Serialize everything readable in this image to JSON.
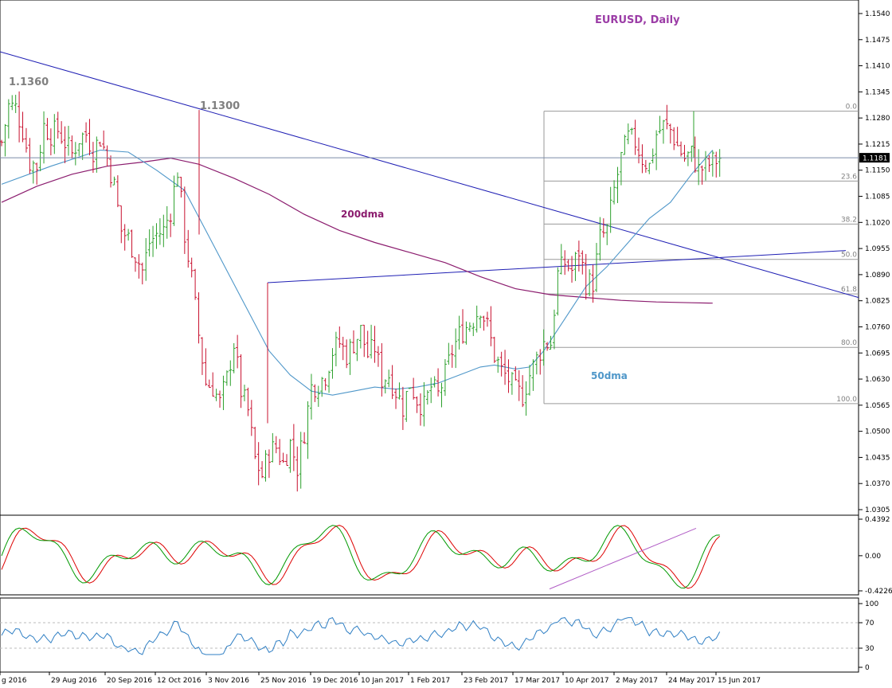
{
  "colors": {
    "up": "#2ca02c",
    "down": "#c8102e",
    "ma50": "#4f97c9",
    "ma200": "#8b1c6e",
    "trend": "#1f1fb4",
    "fib": "#9a9a9a",
    "macd_main": "#009900",
    "macd_signal": "#dd0000",
    "macd_trend": "#b05bc5",
    "rsi": "#2f7fc4",
    "title": "#9b3ca6",
    "annot": "#808080"
  },
  "chart_data": [
    {
      "type": "candlestick",
      "title": "EURUSD, Daily",
      "price_scale": {
        "min": 1.03,
        "max": 1.157
      },
      "ticks": [
        "1.1540",
        "1.1475",
        "1.1410",
        "1.1345",
        "1.1280",
        "1.1215",
        "1.1150",
        "1.1085",
        "1.1020",
        "1.0955",
        "1.0890",
        "1.0825",
        "1.0760",
        "1.0695",
        "1.0630",
        "1.0565",
        "1.0500",
        "1.0435",
        "1.0370",
        "1.0305"
      ],
      "current_price": "1.1181",
      "x_labels": [
        "g 2016",
        "29 Aug 2016",
        "20 Sep 2016",
        "12 Oct 2016",
        "3 Nov 2016",
        "25 Nov 2016",
        "19 Dec 2016",
        "10 Jan 2017",
        "1 Feb 2017",
        "23 Feb 2017",
        "17 Mar 2017",
        "10 Apr 2017",
        "2 May 2017",
        "24 May 2017",
        "15 Jun 2017"
      ],
      "annotations": [
        "1.1360",
        "1.1300",
        "200dma",
        "50dma"
      ],
      "fib_levels": [
        {
          "label": "0.0",
          "price": 1.1297
        },
        {
          "label": "23.6",
          "price": 1.1123
        },
        {
          "label": "38.2",
          "price": 1.1016
        },
        {
          "label": "50.0",
          "price": 1.0928
        },
        {
          "label": "61.8",
          "price": 1.0842
        },
        {
          "label": "80.0",
          "price": 1.0709
        },
        {
          "label": "100.0",
          "price": 1.0569
        }
      ],
      "close_path": [
        [
          0,
          1.122
        ],
        [
          2,
          1.131
        ],
        [
          4,
          1.1305
        ],
        [
          6,
          1.125
        ],
        [
          8,
          1.117
        ],
        [
          10,
          1.116
        ],
        [
          12,
          1.126
        ],
        [
          14,
          1.124
        ],
        [
          16,
          1.125
        ],
        [
          18,
          1.122
        ],
        [
          20,
          1.119
        ],
        [
          22,
          1.123
        ],
        [
          24,
          1.124
        ],
        [
          26,
          1.12
        ],
        [
          28,
          1.123
        ],
        [
          30,
          1.118
        ],
        [
          32,
          1.111
        ],
        [
          34,
          1.1
        ],
        [
          36,
          1.098
        ],
        [
          38,
          1.094
        ],
        [
          40,
          1.09
        ],
        [
          42,
          1.097
        ],
        [
          44,
          1.099
        ],
        [
          46,
          1.1
        ],
        [
          48,
          1.105
        ],
        [
          50,
          1.115
        ],
        [
          52,
          1.099
        ],
        [
          54,
          1.088
        ],
        [
          56,
          1.074
        ],
        [
          58,
          1.062
        ],
        [
          60,
          1.061
        ],
        [
          62,
          1.057
        ],
        [
          64,
          1.063
        ],
        [
          66,
          1.072
        ],
        [
          68,
          1.06
        ],
        [
          70,
          1.055
        ],
        [
          72,
          1.043
        ],
        [
          74,
          1.039
        ],
        [
          76,
          1.045
        ],
        [
          78,
          1.046
        ],
        [
          80,
          1.042
        ],
        [
          82,
          1.047
        ],
        [
          84,
          1.041
        ],
        [
          86,
          1.05
        ],
        [
          88,
          1.061
        ],
        [
          90,
          1.062
        ],
        [
          92,
          1.064
        ],
        [
          94,
          1.07
        ],
        [
          96,
          1.072
        ],
        [
          98,
          1.069
        ],
        [
          100,
          1.072
        ],
        [
          102,
          1.075
        ],
        [
          104,
          1.069
        ],
        [
          106,
          1.071
        ],
        [
          108,
          1.063
        ],
        [
          110,
          1.064
        ],
        [
          112,
          1.06
        ],
        [
          114,
          1.056
        ],
        [
          116,
          1.062
        ],
        [
          118,
          1.058
        ],
        [
          120,
          1.056
        ],
        [
          122,
          1.061
        ],
        [
          124,
          1.059
        ],
        [
          126,
          1.064
        ],
        [
          128,
          1.07
        ],
        [
          130,
          1.074
        ],
        [
          132,
          1.076
        ],
        [
          134,
          1.078
        ],
        [
          136,
          1.081
        ],
        [
          138,
          1.076
        ],
        [
          140,
          1.069
        ],
        [
          142,
          1.065
        ],
        [
          144,
          1.063
        ],
        [
          146,
          1.06
        ],
        [
          148,
          1.059
        ],
        [
          150,
          1.064
        ],
        [
          152,
          1.068
        ],
        [
          154,
          1.072
        ],
        [
          156,
          1.072
        ],
        [
          158,
          1.089
        ],
        [
          160,
          1.092
        ],
        [
          162,
          1.09
        ],
        [
          164,
          1.095
        ],
        [
          166,
          1.087
        ],
        [
          168,
          1.087
        ],
        [
          170,
          1.098
        ],
        [
          172,
          1.1
        ],
        [
          174,
          1.11
        ],
        [
          176,
          1.118
        ],
        [
          178,
          1.123
        ],
        [
          180,
          1.122
        ],
        [
          182,
          1.118
        ],
        [
          184,
          1.116
        ],
        [
          186,
          1.124
        ],
        [
          188,
          1.126
        ],
        [
          190,
          1.125
        ],
        [
          192,
          1.121
        ],
        [
          194,
          1.118
        ],
        [
          196,
          1.119
        ],
        [
          198,
          1.115
        ],
        [
          200,
          1.116
        ],
        [
          202,
          1.117
        ],
        [
          204,
          1.1181
        ]
      ],
      "ma50_path": [
        [
          0,
          1.1115
        ],
        [
          14,
          1.116
        ],
        [
          28,
          1.12
        ],
        [
          36,
          1.1195
        ],
        [
          44,
          1.115
        ],
        [
          52,
          1.11
        ],
        [
          58,
          1.1
        ],
        [
          64,
          1.09
        ],
        [
          70,
          1.08
        ],
        [
          76,
          1.07
        ],
        [
          82,
          1.064
        ],
        [
          88,
          1.06
        ],
        [
          94,
          1.059
        ],
        [
          100,
          1.06
        ],
        [
          106,
          1.061
        ],
        [
          112,
          1.0605
        ],
        [
          118,
          1.061
        ],
        [
          124,
          1.062
        ],
        [
          130,
          1.064
        ],
        [
          136,
          1.066
        ],
        [
          140,
          1.0665
        ],
        [
          146,
          1.0655
        ],
        [
          150,
          1.066
        ],
        [
          154,
          1.07
        ],
        [
          160,
          1.078
        ],
        [
          166,
          1.086
        ],
        [
          172,
          1.091
        ],
        [
          178,
          1.097
        ],
        [
          184,
          1.103
        ],
        [
          190,
          1.107
        ],
        [
          196,
          1.114
        ],
        [
          202,
          1.12
        ]
      ],
      "ma200_path": [
        [
          0,
          1.107
        ],
        [
          10,
          1.111
        ],
        [
          20,
          1.114
        ],
        [
          30,
          1.116
        ],
        [
          40,
          1.117
        ],
        [
          48,
          1.118
        ],
        [
          56,
          1.1165
        ],
        [
          66,
          1.113
        ],
        [
          76,
          1.109
        ],
        [
          86,
          1.104
        ],
        [
          96,
          1.1
        ],
        [
          106,
          1.097
        ],
        [
          116,
          1.0945
        ],
        [
          126,
          1.092
        ],
        [
          136,
          1.0885
        ],
        [
          146,
          1.0855
        ],
        [
          156,
          1.084
        ],
        [
          166,
          1.0833
        ],
        [
          176,
          1.0826
        ],
        [
          186,
          1.0822
        ],
        [
          196,
          1.082
        ],
        [
          202,
          1.0819
        ]
      ]
    },
    {
      "type": "line",
      "name": "oscillator",
      "ticks": [
        "0.4392",
        "0.00",
        "-0.4226"
      ]
    },
    {
      "type": "line",
      "name": "rsi",
      "ticks": [
        "100",
        "70",
        "30",
        "0"
      ]
    }
  ]
}
